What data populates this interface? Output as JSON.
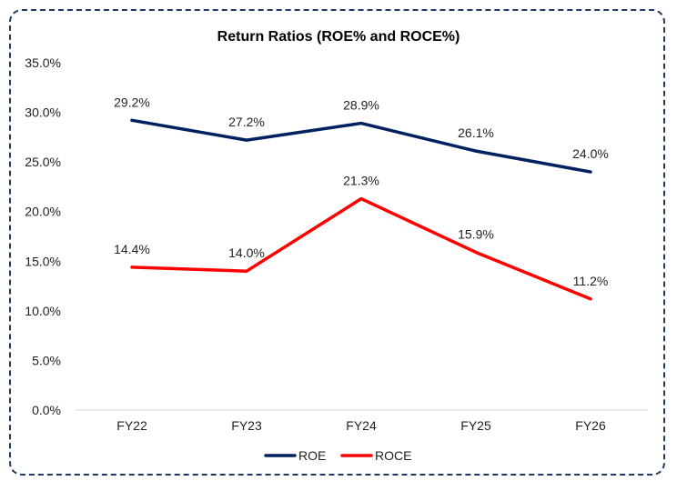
{
  "chart_data": {
    "type": "line",
    "title": "Return Ratios (ROE% and ROCE%)",
    "xlabel": "",
    "ylabel": "",
    "categories": [
      "FY22",
      "FY23",
      "FY24",
      "FY25",
      "FY26"
    ],
    "ylim": [
      0,
      35
    ],
    "yticks": [
      "0.0%",
      "5.0%",
      "10.0%",
      "15.0%",
      "20.0%",
      "25.0%",
      "30.0%",
      "35.0%"
    ],
    "grid": false,
    "legend_position": "bottom",
    "series": [
      {
        "name": "ROE",
        "color": "#002060",
        "values": [
          29.2,
          27.2,
          28.9,
          26.1,
          24.0
        ],
        "labels": [
          "29.2%",
          "27.2%",
          "28.9%",
          "26.1%",
          "24.0%"
        ]
      },
      {
        "name": "ROCE",
        "color": "#ff0000",
        "values": [
          14.4,
          14.0,
          21.3,
          15.9,
          11.2
        ],
        "labels": [
          "14.4%",
          "14.0%",
          "21.3%",
          "15.9%",
          "11.2%"
        ]
      }
    ]
  }
}
